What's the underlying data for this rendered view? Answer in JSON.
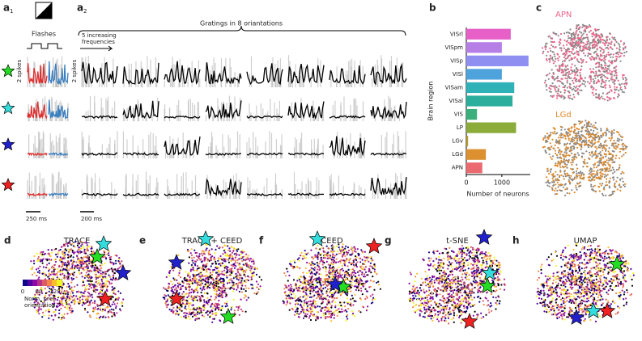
{
  "panel_a1": {
    "label": "a",
    "sub": "1",
    "stimulus": "Flashes",
    "scale_y": "2 spikes",
    "scale_x": "250 ms"
  },
  "panel_a2": {
    "label": "a",
    "sub": "2",
    "stimulus": "Gratings in 8 oriantations",
    "note": [
      "5 increasing",
      "frequencies"
    ],
    "scale_y": "2 spikes",
    "scale_x": "200 ms"
  },
  "chart_data": {
    "type": "bar",
    "label": "b",
    "orientation": "horizontal",
    "categories": [
      "VISrl",
      "VISpm",
      "VISp",
      "VISl",
      "VISam",
      "VISal",
      "VIS",
      "LP",
      "LGv",
      "LGd",
      "APN"
    ],
    "values": [
      1250,
      1000,
      1750,
      1000,
      1350,
      1300,
      300,
      1400,
      50,
      550,
      450
    ],
    "colors": [
      "#e660c8",
      "#b67fe6",
      "#8f8ff2",
      "#4ea3dc",
      "#2fb1b8",
      "#2bae9c",
      "#3cb07c",
      "#8bab3a",
      "#b59b30",
      "#dc9030",
      "#eb6a70"
    ],
    "xlabel": "Number of neurons",
    "ylabel": "Brain region",
    "xlim": [
      0,
      1800
    ],
    "xticks": [
      0,
      1000
    ]
  },
  "panel_c": {
    "label": "c",
    "maps": [
      "APN",
      "LGd"
    ],
    "colors": [
      "#f0648a",
      "#e08a2a"
    ]
  },
  "embeddings": [
    {
      "label": "d",
      "title": "TRACE"
    },
    {
      "label": "e",
      "title": "TRACE + CEED"
    },
    {
      "label": "f",
      "title": "CEED"
    },
    {
      "label": "g",
      "title": "t-SNE"
    },
    {
      "label": "h",
      "title": "UMAP"
    }
  ],
  "colorbar": {
    "ticks": [
      0,
      60,
      120
    ],
    "label": [
      "Norm. pref.",
      "orientation"
    ]
  }
}
